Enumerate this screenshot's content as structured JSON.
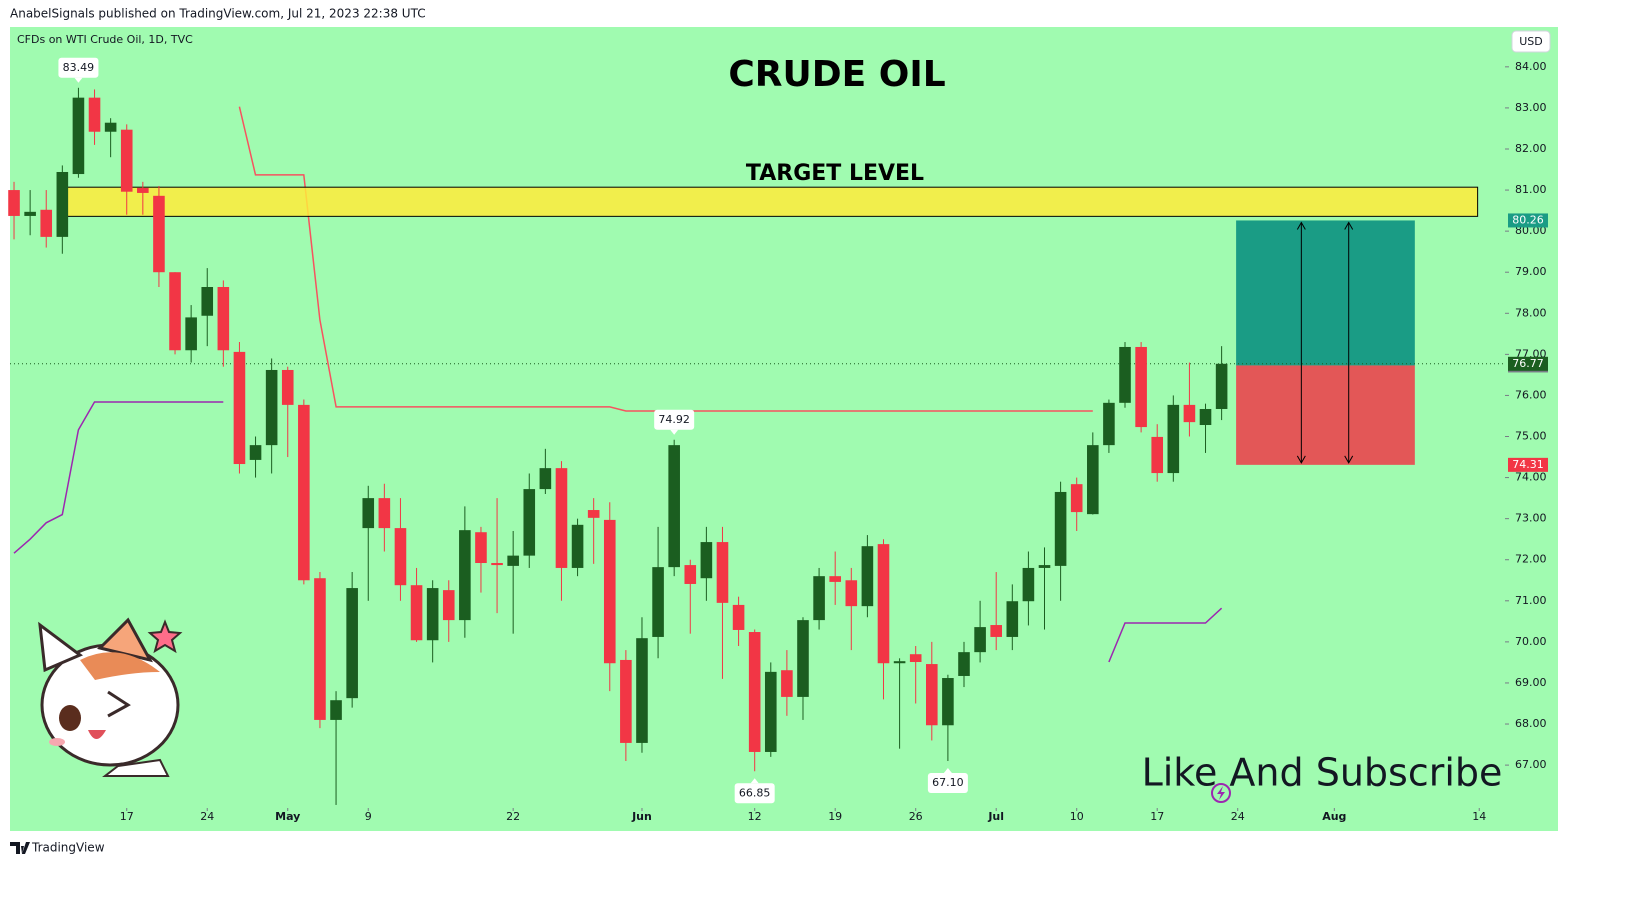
{
  "header": {
    "published": "AnabelSignals published on TradingView.com, Jul 21, 2023 22:38 UTC",
    "symbol": "CFDs on WTI Crude Oil, 1D, TVC",
    "currency": "USD"
  },
  "footer": {
    "brand": "TradingView"
  },
  "chart_data": {
    "type": "candlestick",
    "title": "CRUDE OIL",
    "open": [
      81.0,
      80.37,
      80.52,
      79.86,
      81.39,
      83.25,
      82.42,
      82.47,
      81.05,
      80.86,
      79.0,
      77.1,
      77.94,
      78.64,
      77.06,
      74.43,
      74.79,
      76.62,
      75.77,
      71.55,
      68.1,
      68.63,
      72.77,
      73.5,
      72.77,
      71.38,
      70.04,
      71.26,
      70.53,
      72.67,
      71.92,
      71.85,
      72.1,
      73.72,
      74.23,
      71.8,
      73.21,
      72.97,
      69.56,
      67.54,
      70.12,
      71.82,
      71.87,
      71.55,
      72.43,
      70.9,
      70.24,
      67.32,
      69.31,
      68.66,
      70.53,
      71.6,
      71.5,
      70.87,
      72.38,
      69.48,
      69.7,
      69.46,
      67.97,
      69.17,
      69.75,
      70.41,
      70.12,
      70.99,
      71.8,
      71.85,
      73.84,
      73.11,
      74.79,
      75.82,
      77.18,
      74.99,
      74.11,
      75.77,
      75.28,
      75.67
    ],
    "high": [
      81.2,
      81.0,
      81.0,
      81.6,
      83.49,
      83.45,
      82.75,
      82.6,
      81.2,
      81.1,
      79.0,
      78.2,
      79.1,
      78.8,
      77.3,
      75.0,
      76.9,
      76.7,
      75.9,
      71.7,
      68.8,
      71.7,
      73.8,
      73.85,
      73.5,
      71.8,
      71.5,
      71.5,
      73.3,
      72.8,
      73.5,
      72.7,
      74.1,
      74.7,
      74.4,
      73.0,
      73.5,
      73.4,
      69.8,
      70.6,
      72.8,
      74.92,
      72.0,
      72.8,
      72.8,
      71.1,
      70.3,
      69.5,
      69.8,
      70.6,
      71.8,
      72.2,
      71.8,
      72.6,
      72.5,
      69.6,
      69.9,
      70.0,
      69.2,
      70.0,
      71.0,
      71.7,
      71.4,
      72.2,
      72.3,
      73.9,
      74.0,
      75.1,
      75.9,
      77.3,
      77.3,
      75.3,
      76.0,
      76.8,
      75.8,
      77.2
    ],
    "low": [
      79.8,
      79.9,
      79.6,
      79.45,
      81.3,
      82.1,
      81.8,
      80.4,
      80.4,
      78.64,
      77.0,
      76.8,
      77.2,
      76.7,
      74.1,
      74.0,
      74.1,
      74.5,
      71.4,
      67.9,
      66.03,
      68.4,
      71.0,
      72.2,
      71.0,
      70.0,
      69.5,
      70.0,
      70.1,
      71.2,
      70.7,
      70.2,
      71.8,
      73.6,
      71.0,
      71.6,
      71.9,
      68.8,
      67.1,
      67.3,
      69.6,
      71.6,
      70.2,
      71.0,
      69.1,
      69.9,
      66.85,
      67.2,
      68.2,
      68.1,
      70.3,
      70.9,
      69.8,
      70.6,
      68.6,
      67.4,
      68.5,
      67.6,
      67.1,
      68.9,
      69.5,
      69.8,
      69.8,
      70.4,
      70.3,
      71.0,
      72.7,
      73.1,
      74.6,
      75.7,
      75.1,
      73.9,
      73.9,
      75.0,
      74.6,
      75.4
    ],
    "close": [
      80.37,
      80.47,
      79.86,
      81.44,
      83.25,
      82.42,
      82.64,
      80.96,
      80.93,
      79.0,
      77.1,
      77.9,
      78.64,
      77.1,
      74.33,
      74.79,
      76.62,
      75.77,
      71.5,
      68.1,
      68.58,
      71.31,
      73.5,
      72.77,
      71.38,
      70.04,
      71.31,
      70.53,
      72.72,
      71.92,
      71.87,
      72.1,
      73.72,
      74.23,
      71.8,
      72.85,
      73.02,
      69.48,
      67.54,
      70.09,
      71.82,
      74.79,
      71.41,
      72.43,
      70.95,
      70.29,
      67.32,
      69.27,
      68.66,
      70.53,
      71.6,
      71.46,
      70.87,
      72.33,
      69.48,
      69.53,
      69.51,
      67.97,
      69.12,
      69.75,
      70.36,
      70.12,
      70.99,
      71.8,
      71.87,
      73.65,
      73.16,
      74.79,
      75.82,
      77.18,
      75.23,
      74.11,
      75.77,
      75.35,
      75.67,
      76.77
    ],
    "up_color": "#1b5e20",
    "down_color": "#f23645",
    "xlim": [
      -0.25,
      92.6
    ],
    "ylim": [
      65.42,
      84.97
    ],
    "xticks": [
      {
        "value": 7,
        "label": "17"
      },
      {
        "value": 12,
        "label": "24"
      },
      {
        "value": 17,
        "label": "May"
      },
      {
        "value": 22,
        "label": "9"
      },
      {
        "value": 31,
        "label": "22"
      },
      {
        "value": 39,
        "label": "Jun"
      },
      {
        "value": 46,
        "label": "12"
      },
      {
        "value": 51,
        "label": "19"
      },
      {
        "value": 56,
        "label": "26"
      },
      {
        "value": 61,
        "label": "Jul"
      },
      {
        "value": 66,
        "label": "10"
      },
      {
        "value": 71,
        "label": "17"
      },
      {
        "value": 76,
        "label": "24"
      },
      {
        "value": 82,
        "label": "Aug"
      },
      {
        "value": 91,
        "label": "14"
      }
    ],
    "yticks": [
      {
        "value": 67,
        "label": "67.00"
      },
      {
        "value": 68,
        "label": "68.00"
      },
      {
        "value": 69,
        "label": "69.00"
      },
      {
        "value": 70,
        "label": "70.00"
      },
      {
        "value": 71,
        "label": "71.00"
      },
      {
        "value": 72,
        "label": "72.00"
      },
      {
        "value": 73,
        "label": "73.00"
      },
      {
        "value": 74,
        "label": "74.00"
      },
      {
        "value": 75,
        "label": "75.00"
      },
      {
        "value": 76,
        "label": "76.00"
      },
      {
        "value": 77,
        "label": "77.00"
      },
      {
        "value": 78,
        "label": "78.00"
      },
      {
        "value": 79,
        "label": "79.00"
      },
      {
        "value": 80,
        "label": "80.00"
      },
      {
        "value": 81,
        "label": "81.00"
      },
      {
        "value": 82,
        "label": "82.00"
      },
      {
        "value": 83,
        "label": "83.00"
      },
      {
        "value": 84,
        "label": "84.00"
      }
    ],
    "indicators": [
      {
        "color": "#f7525f",
        "values": [
          null,
          null,
          null,
          null,
          null,
          null,
          null,
          null,
          null,
          null,
          null,
          null,
          null,
          null,
          83.03,
          81.37,
          81.37,
          81.37,
          81.37,
          77.84,
          75.72,
          75.72,
          75.72,
          75.72,
          75.72,
          75.72,
          75.72,
          75.72,
          75.72,
          75.72,
          75.72,
          75.72,
          75.72,
          75.72,
          75.72,
          75.72,
          75.72,
          75.72,
          75.62,
          75.62,
          75.62,
          75.62,
          75.62,
          75.62,
          75.62,
          75.62,
          75.62,
          75.62,
          75.62,
          75.62,
          75.62,
          75.62,
          75.62,
          75.62,
          75.62,
          75.62,
          75.62,
          75.62,
          75.62,
          75.62,
          75.62,
          75.62,
          75.62,
          75.62,
          75.62,
          75.62,
          75.62,
          75.62,
          null,
          null,
          null,
          null,
          null,
          null,
          null,
          null
        ]
      },
      {
        "color": "#9c27b0",
        "values": [
          72.16,
          72.5,
          72.9,
          73.1,
          75.16,
          75.84,
          75.84,
          75.84,
          75.84,
          75.84,
          75.84,
          75.84,
          75.84,
          75.84,
          null,
          null,
          null,
          null,
          null,
          null,
          null,
          null,
          null,
          null,
          null,
          null,
          null,
          null,
          null,
          null,
          null,
          null,
          null,
          null,
          null,
          null,
          null,
          null,
          null,
          null,
          null,
          null,
          null,
          null,
          null,
          null,
          null,
          null,
          null,
          null,
          null,
          null,
          null,
          null,
          null,
          null,
          null,
          null,
          null,
          null,
          null,
          null,
          null,
          null,
          null,
          null,
          null,
          null,
          69.51,
          70.46,
          70.46,
          70.46,
          70.46,
          70.46,
          70.46,
          70.82
        ]
      }
    ],
    "extreme_labels": [
      {
        "x": 4,
        "value": 83.49,
        "of": "high"
      },
      {
        "x": 41,
        "value": 74.92,
        "of": "high"
      },
      {
        "x": 46,
        "value": 66.85,
        "of": "low"
      },
      {
        "x": 58,
        "value": 67.1,
        "label": "67.10",
        "of": "low"
      }
    ],
    "target_zone": {
      "label": "TARGET LEVEL",
      "range": [
        80.36,
        81.07
      ],
      "x": [
        3.2,
        90.9
      ],
      "color": "#ffeb3b"
    },
    "position": {
      "target": 80.26,
      "entry": 76.73,
      "stop": 74.31,
      "x": [
        75.9,
        87
      ],
      "profit_color": "#1a9c85",
      "loss_color": "#e35757"
    },
    "last_price": 76.77,
    "cta": "Like And Subscribe"
  }
}
